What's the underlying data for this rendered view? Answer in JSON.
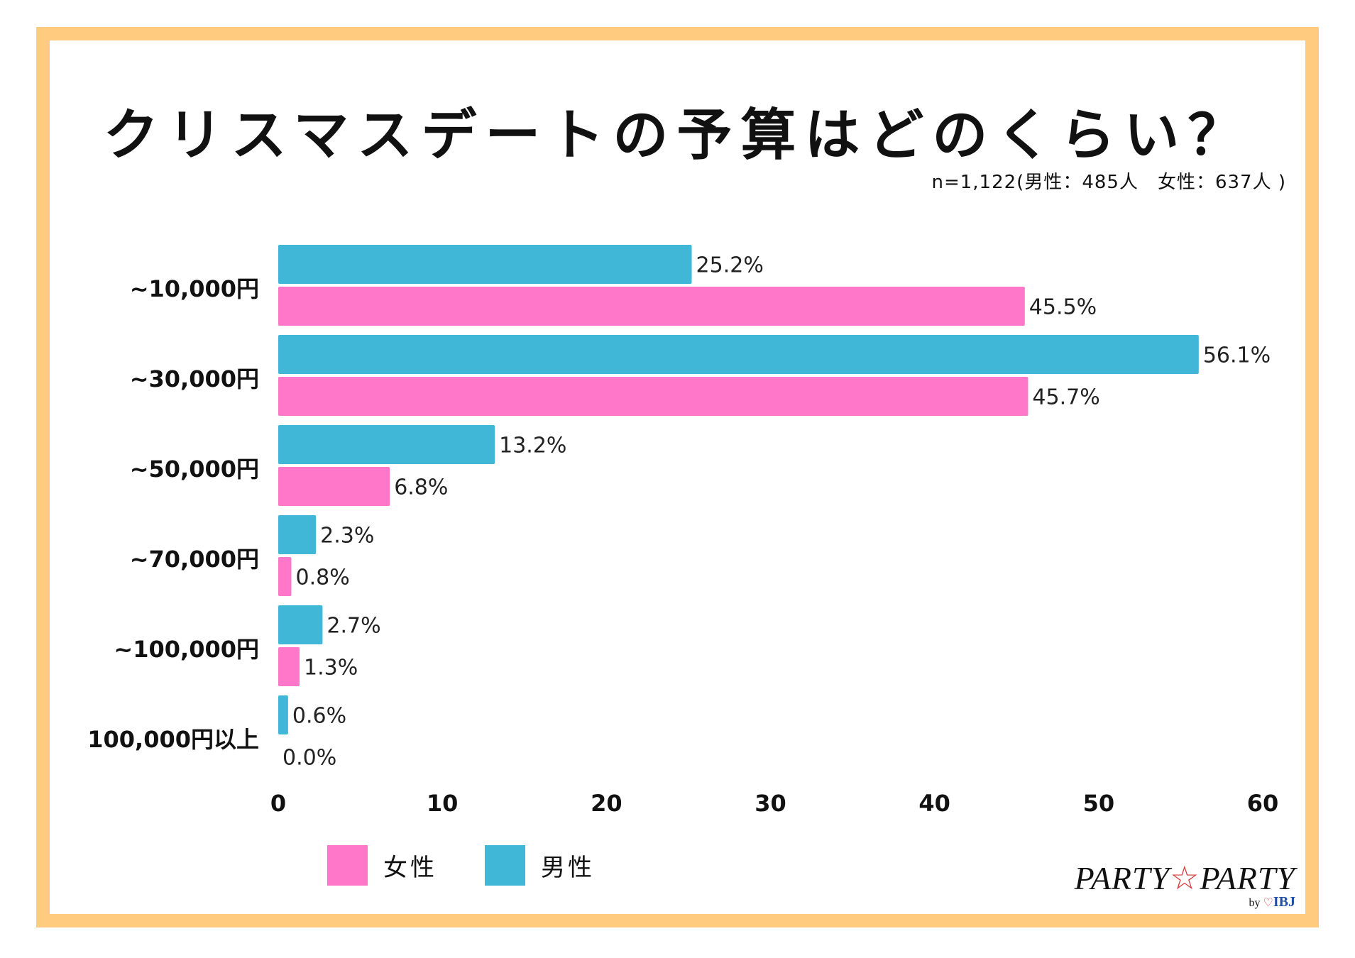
{
  "title": "クリスマスデートの予算はどのくらい？",
  "sample_note": "n=1,122(男性：485人　女性：637人 )",
  "legend": [
    {
      "label": "女性",
      "color": "#FF77C9"
    },
    {
      "label": "男性",
      "color": "#41B7D8"
    }
  ],
  "logo": {
    "brand_left": "PARTY",
    "star": "☆",
    "brand_right": "PARTY",
    "by": "by",
    "partner": "IBJ"
  },
  "colors": {
    "frame": "#FFCB7E",
    "male": "#41B7D8",
    "female": "#FF77C9"
  },
  "chart_data": {
    "type": "bar",
    "orientation": "horizontal",
    "title": "クリスマスデートの予算はどのくらい？",
    "categories": [
      "~10,000円",
      "~30,000円",
      "~50,000円",
      "~70,000円",
      "~100,000円",
      "100,000円以上"
    ],
    "series": [
      {
        "name": "男性",
        "color": "#41B7D8",
        "values": [
          25.2,
          56.1,
          13.2,
          2.3,
          2.7,
          0.6
        ],
        "labels": [
          "25.2%",
          "56.1%",
          "13.2%",
          "2.3%",
          "2.7%",
          "0.6%"
        ]
      },
      {
        "name": "女性",
        "color": "#FF77C9",
        "values": [
          45.5,
          45.7,
          6.8,
          0.8,
          1.3,
          0.0
        ],
        "labels": [
          "45.5%",
          "45.7%",
          "6.8%",
          "0.8%",
          "1.3%",
          "0.0%"
        ]
      }
    ],
    "xlim": [
      0,
      60
    ],
    "xticks": [
      "0",
      "10",
      "20",
      "30",
      "40",
      "50",
      "60"
    ],
    "xlabel": "",
    "ylabel": "",
    "grid": false,
    "legend_position": "bottom-left"
  }
}
